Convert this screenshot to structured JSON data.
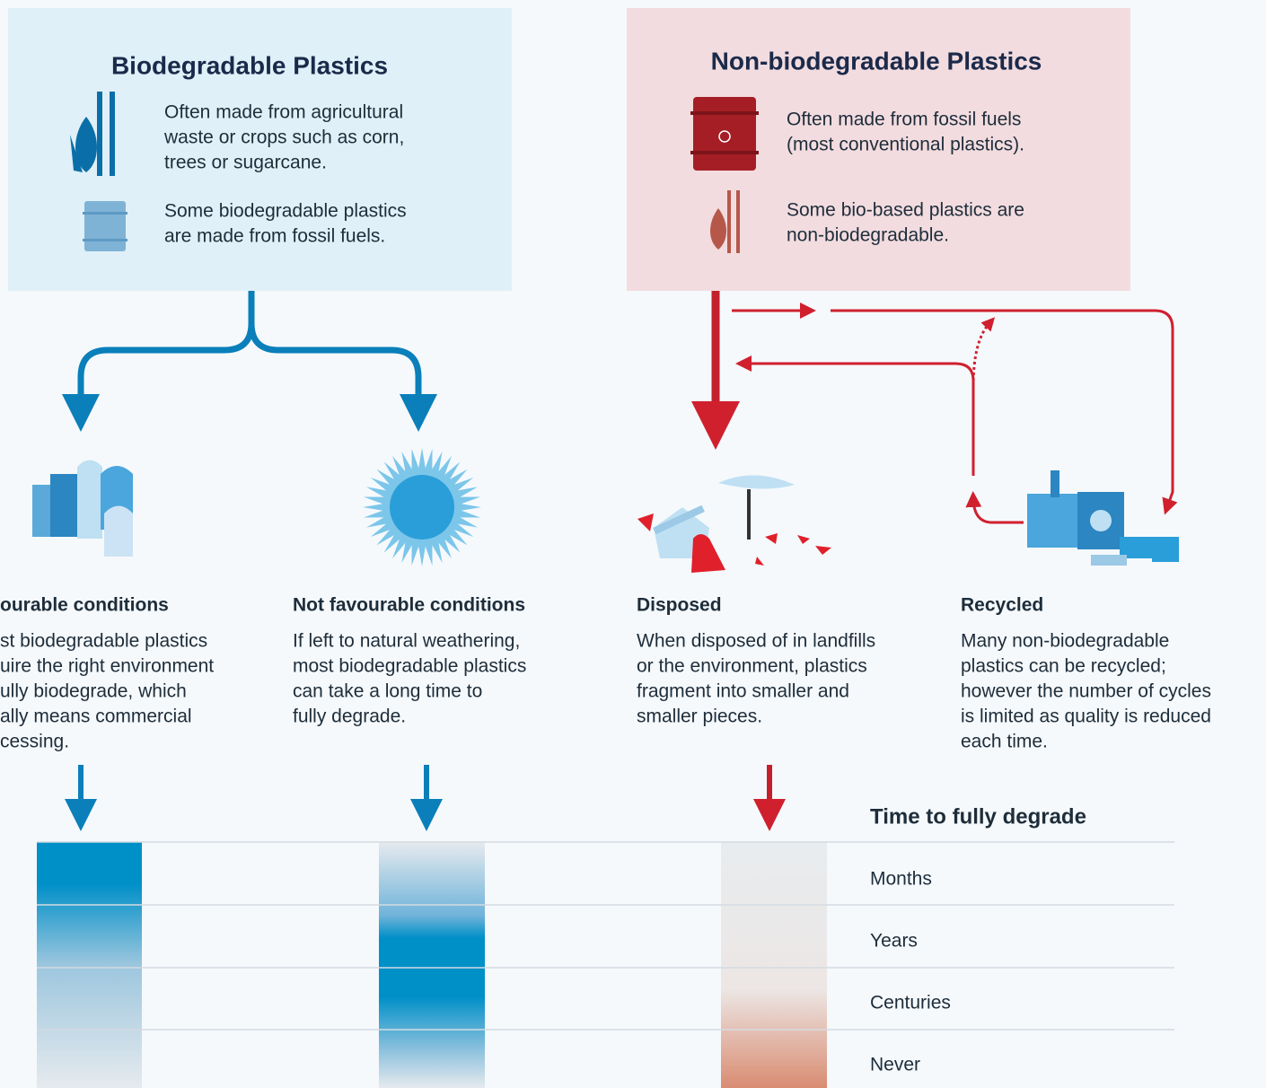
{
  "left_panel": {
    "title": "Biodegradable Plastics",
    "items": [
      [
        "Often made from agricultural",
        "waste or crops such as corn,",
        "trees or sugarcane."
      ],
      [
        "Some biodegradable plastics",
        "are made from fossil fuels."
      ]
    ]
  },
  "right_panel": {
    "title": "Non-biodegradable Plastics",
    "items": [
      [
        "Often made from fossil fuels",
        "(most conventional plastics)."
      ],
      [
        "Some bio-based plastics are",
        "non-biodegradable."
      ]
    ]
  },
  "outcomes": [
    {
      "heading": "ourable conditions",
      "lines": [
        "st biodegradable plastics",
        "uire the right environment",
        "ully biodegrade, which",
        "ally means commercial",
        "cessing."
      ]
    },
    {
      "heading": "Not favourable conditions",
      "lines": [
        "If left to natural weathering,",
        "most biodegradable plastics",
        "can take a long time to",
        "fully degrade."
      ]
    },
    {
      "heading": "Disposed",
      "lines": [
        "When disposed of in landfills",
        "or the environment, plastics",
        "fragment into smaller and",
        "smaller pieces."
      ]
    },
    {
      "heading": "Recycled",
      "lines": [
        "Many non-biodegradable",
        "plastics can be recycled;",
        "however the number of cycles",
        "is limited as quality is reduced",
        "each time."
      ]
    }
  ],
  "legend": {
    "title": "Time to fully degrade",
    "levels": [
      "Months",
      "Years",
      "Centuries",
      "Never"
    ]
  }
}
